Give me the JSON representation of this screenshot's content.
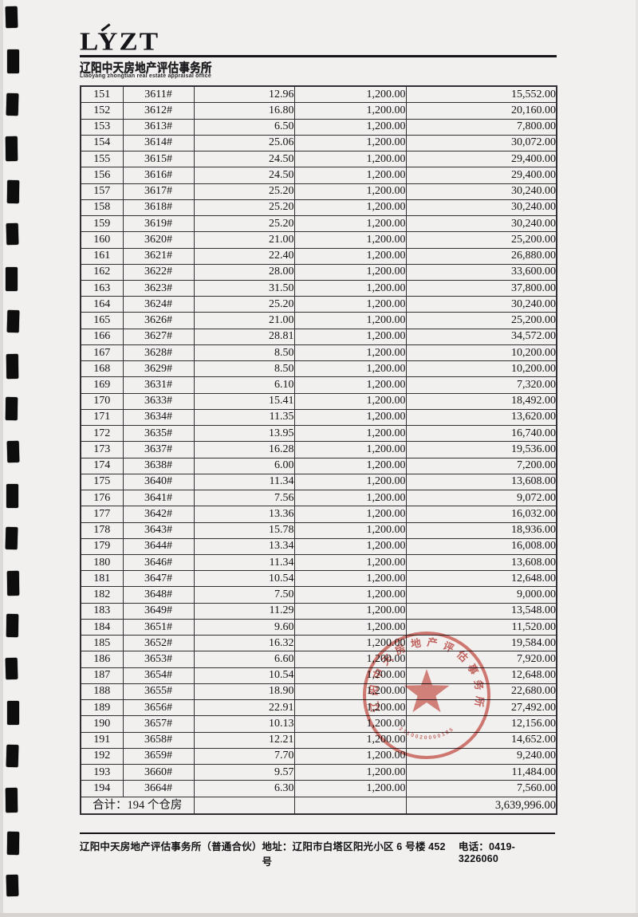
{
  "header": {
    "logo_text": "LYZT",
    "company_cn": "辽阳中天房地产评估事务所",
    "company_en": "Liaoyang zhongtian real estate appraisal office"
  },
  "table": {
    "rows": [
      {
        "no": "151",
        "unit": "3611#",
        "area": "12.96",
        "price": "1,200.00",
        "total": "15,552.00"
      },
      {
        "no": "152",
        "unit": "3612#",
        "area": "16.80",
        "price": "1,200.00",
        "total": "20,160.00"
      },
      {
        "no": "153",
        "unit": "3613#",
        "area": "6.50",
        "price": "1,200.00",
        "total": "7,800.00"
      },
      {
        "no": "154",
        "unit": "3614#",
        "area": "25.06",
        "price": "1,200.00",
        "total": "30,072.00"
      },
      {
        "no": "155",
        "unit": "3615#",
        "area": "24.50",
        "price": "1,200.00",
        "total": "29,400.00"
      },
      {
        "no": "156",
        "unit": "3616#",
        "area": "24.50",
        "price": "1,200.00",
        "total": "29,400.00"
      },
      {
        "no": "157",
        "unit": "3617#",
        "area": "25.20",
        "price": "1,200.00",
        "total": "30,240.00"
      },
      {
        "no": "158",
        "unit": "3618#",
        "area": "25.20",
        "price": "1,200.00",
        "total": "30,240.00"
      },
      {
        "no": "159",
        "unit": "3619#",
        "area": "25.20",
        "price": "1,200.00",
        "total": "30,240.00"
      },
      {
        "no": "160",
        "unit": "3620#",
        "area": "21.00",
        "price": "1,200.00",
        "total": "25,200.00"
      },
      {
        "no": "161",
        "unit": "3621#",
        "area": "22.40",
        "price": "1,200.00",
        "total": "26,880.00"
      },
      {
        "no": "162",
        "unit": "3622#",
        "area": "28.00",
        "price": "1,200.00",
        "total": "33,600.00"
      },
      {
        "no": "163",
        "unit": "3623#",
        "area": "31.50",
        "price": "1,200.00",
        "total": "37,800.00"
      },
      {
        "no": "164",
        "unit": "3624#",
        "area": "25.20",
        "price": "1,200.00",
        "total": "30,240.00"
      },
      {
        "no": "165",
        "unit": "3626#",
        "area": "21.00",
        "price": "1,200.00",
        "total": "25,200.00"
      },
      {
        "no": "166",
        "unit": "3627#",
        "area": "28.81",
        "price": "1,200.00",
        "total": "34,572.00"
      },
      {
        "no": "167",
        "unit": "3628#",
        "area": "8.50",
        "price": "1,200.00",
        "total": "10,200.00"
      },
      {
        "no": "168",
        "unit": "3629#",
        "area": "8.50",
        "price": "1,200.00",
        "total": "10,200.00"
      },
      {
        "no": "169",
        "unit": "3631#",
        "area": "6.10",
        "price": "1,200.00",
        "total": "7,320.00"
      },
      {
        "no": "170",
        "unit": "3633#",
        "area": "15.41",
        "price": "1,200.00",
        "total": "18,492.00"
      },
      {
        "no": "171",
        "unit": "3634#",
        "area": "11.35",
        "price": "1,200.00",
        "total": "13,620.00"
      },
      {
        "no": "172",
        "unit": "3635#",
        "area": "13.95",
        "price": "1,200.00",
        "total": "16,740.00"
      },
      {
        "no": "173",
        "unit": "3637#",
        "area": "16.28",
        "price": "1,200.00",
        "total": "19,536.00"
      },
      {
        "no": "174",
        "unit": "3638#",
        "area": "6.00",
        "price": "1,200.00",
        "total": "7,200.00"
      },
      {
        "no": "175",
        "unit": "3640#",
        "area": "11.34",
        "price": "1,200.00",
        "total": "13,608.00"
      },
      {
        "no": "176",
        "unit": "3641#",
        "area": "7.56",
        "price": "1,200.00",
        "total": "9,072.00"
      },
      {
        "no": "177",
        "unit": "3642#",
        "area": "13.36",
        "price": "1,200.00",
        "total": "16,032.00"
      },
      {
        "no": "178",
        "unit": "3643#",
        "area": "15.78",
        "price": "1,200.00",
        "total": "18,936.00"
      },
      {
        "no": "179",
        "unit": "3644#",
        "area": "13.34",
        "price": "1,200.00",
        "total": "16,008.00"
      },
      {
        "no": "180",
        "unit": "3646#",
        "area": "11.34",
        "price": "1,200.00",
        "total": "13,608.00"
      },
      {
        "no": "181",
        "unit": "3647#",
        "area": "10.54",
        "price": "1,200.00",
        "total": "12,648.00"
      },
      {
        "no": "182",
        "unit": "3648#",
        "area": "7.50",
        "price": "1,200.00",
        "total": "9,000.00"
      },
      {
        "no": "183",
        "unit": "3649#",
        "area": "11.29",
        "price": "1,200.00",
        "total": "13,548.00"
      },
      {
        "no": "184",
        "unit": "3651#",
        "area": "9.60",
        "price": "1,200.00",
        "total": "11,520.00"
      },
      {
        "no": "185",
        "unit": "3652#",
        "area": "16.32",
        "price": "1,200.00",
        "total": "19,584.00"
      },
      {
        "no": "186",
        "unit": "3653#",
        "area": "6.60",
        "price": "1,200.00",
        "total": "7,920.00"
      },
      {
        "no": "187",
        "unit": "3654#",
        "area": "10.54",
        "price": "1,200.00",
        "total": "12,648.00"
      },
      {
        "no": "188",
        "unit": "3655#",
        "area": "18.90",
        "price": "1,200.00",
        "total": "22,680.00"
      },
      {
        "no": "189",
        "unit": "3656#",
        "area": "22.91",
        "price": "1,200.00",
        "total": "27,492.00"
      },
      {
        "no": "190",
        "unit": "3657#",
        "area": "10.13",
        "price": "1,200.00",
        "total": "12,156.00"
      },
      {
        "no": "191",
        "unit": "3658#",
        "area": "12.21",
        "price": "1,200.00",
        "total": "14,652.00"
      },
      {
        "no": "192",
        "unit": "3659#",
        "area": "7.70",
        "price": "1,200.00",
        "total": "9,240.00"
      },
      {
        "no": "193",
        "unit": "3660#",
        "area": "9.57",
        "price": "1,200.00",
        "total": "11,484.00"
      },
      {
        "no": "194",
        "unit": "3664#",
        "area": "6.30",
        "price": "1,200.00",
        "total": "7,560.00"
      }
    ],
    "summary": {
      "label": "合计：194 个仓房",
      "total": "3,639,996.00"
    }
  },
  "stamp": {
    "arc_text": "辽阳中天房地产评估事务所",
    "serial": "2110020000185",
    "color": "#c0392f"
  },
  "footer": {
    "company": "辽阳中天房地产评估事务所（普通合伙）",
    "address": "地址：辽阳市白塔区阳光小区 6 号楼 452 号",
    "phone": "电话：0419-3226060"
  }
}
